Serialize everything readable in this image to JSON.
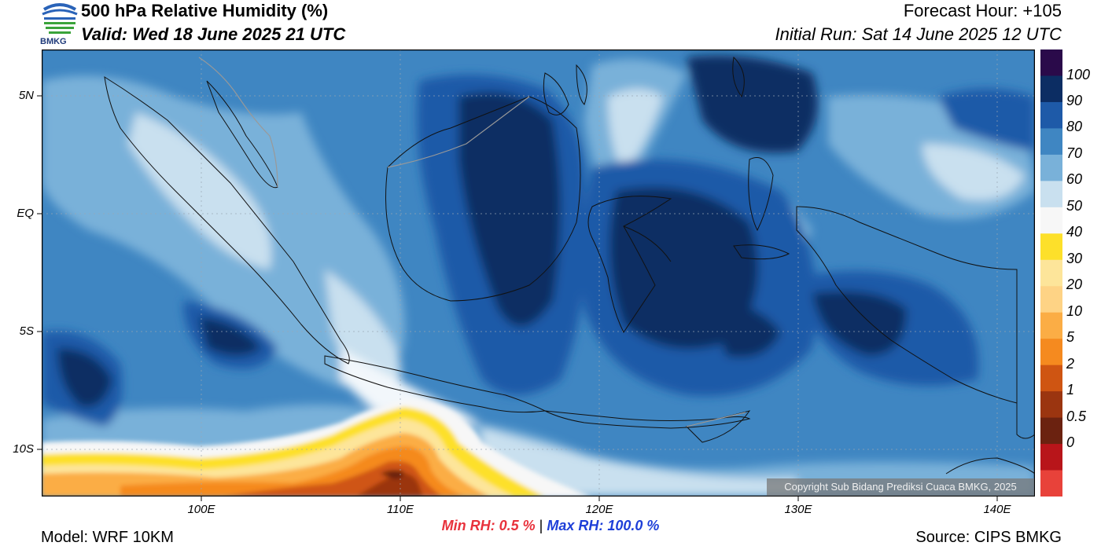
{
  "header": {
    "title": "500 hPa Relative Humidity (%)",
    "valid": "Valid: Wed 18 June 2025 21 UTC",
    "forecast_hour": "Forecast Hour: +105",
    "initial_run": "Initial Run: Sat 14 June 2025 12 UTC"
  },
  "logo": {
    "text": "BMKG"
  },
  "footer": {
    "model": "Model: WRF 10KM",
    "source": "Source: CIPS BMKG",
    "min_rh": "Min RH:   0.5 %",
    "separator": "|",
    "max_rh": "Max RH: 100.0 %"
  },
  "copyright": "Copyright Sub Bidang Prediksi Cuaca BMKG, 2025",
  "axes": {
    "lat_labels": [
      "5N",
      "EQ",
      "5S",
      "10S"
    ],
    "lon_labels": [
      "100E",
      "110E",
      "120E",
      "130E",
      "140E"
    ]
  },
  "colorbar": {
    "labels": [
      "100",
      "90",
      "80",
      "70",
      "60",
      "50",
      "40",
      "30",
      "20",
      "10",
      "5",
      "2",
      "1",
      "0.5",
      "0"
    ],
    "colors": [
      "#2a0a4a",
      "#0c2d63",
      "#1e5aa8",
      "#3f86c2",
      "#79b1d9",
      "#c9e0ef",
      "#f7f7f7",
      "#fde02a",
      "#fde59a",
      "#fed385",
      "#fbad45",
      "#f58a1f",
      "#cf5512",
      "#9b3510",
      "#6b2210",
      "#b8151a",
      "#e8423a"
    ]
  },
  "colors": {
    "min_text": "#e8323c",
    "max_text": "#1e3fd8"
  }
}
